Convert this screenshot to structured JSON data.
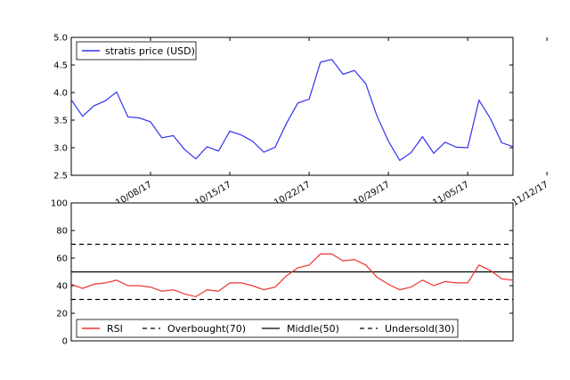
{
  "chart_data": [
    {
      "type": "line",
      "title": "",
      "xlabel": "",
      "ylabel": "",
      "ylim": [
        2.5,
        5.0
      ],
      "yticks": [
        "2.5",
        "3.0",
        "3.5",
        "4.0",
        "4.5",
        "5.0"
      ],
      "xticks": [
        {
          "label": "10/08/17",
          "index": 7
        },
        {
          "label": "10/15/17",
          "index": 14
        },
        {
          "label": "10/22/17",
          "index": 21
        },
        {
          "label": "10/29/17",
          "index": 28
        },
        {
          "label": "11/05/17",
          "index": 35
        },
        {
          "label": "11/12/17",
          "index": 42
        }
      ],
      "legend": "top-left",
      "series": [
        {
          "name": "stratis price (USD)",
          "color": "#3333ee",
          "values": [
            3.87,
            3.57,
            3.76,
            3.85,
            4.01,
            3.56,
            3.54,
            3.47,
            3.18,
            3.22,
            2.97,
            2.8,
            3.02,
            2.94,
            3.3,
            3.23,
            3.12,
            2.92,
            3.01,
            3.44,
            3.81,
            3.88,
            4.55,
            4.6,
            4.33,
            4.4,
            4.16,
            3.57,
            3.12,
            2.77,
            2.91,
            3.2,
            2.9,
            3.1,
            3.01,
            3.0,
            3.86,
            3.53,
            3.09,
            3.02
          ]
        }
      ]
    },
    {
      "type": "line",
      "title": "",
      "xlabel": "",
      "ylabel": "",
      "ylim": [
        0,
        100
      ],
      "yticks": [
        "0",
        "20",
        "40",
        "60",
        "80",
        "100"
      ],
      "legend": "bottom-left",
      "series": [
        {
          "name": "RSI",
          "color": "#ee3333",
          "values": [
            41,
            38,
            41,
            42,
            44,
            40,
            40,
            39,
            36,
            37,
            34,
            32,
            37,
            36,
            42,
            42,
            40,
            37,
            39,
            47,
            53,
            55,
            63,
            63,
            58,
            59,
            55,
            46,
            41,
            37,
            39,
            44,
            40,
            43,
            42,
            42,
            55,
            51,
            45,
            44
          ]
        }
      ],
      "reference_lines": [
        {
          "name": "Overbought(70)",
          "value": 70,
          "style": "dashed",
          "color": "#000000"
        },
        {
          "name": "Middle(50)",
          "value": 50,
          "style": "solid",
          "color": "#000000"
        },
        {
          "name": "Undersold(30)",
          "value": 30,
          "style": "dashed",
          "color": "#000000"
        }
      ]
    }
  ]
}
